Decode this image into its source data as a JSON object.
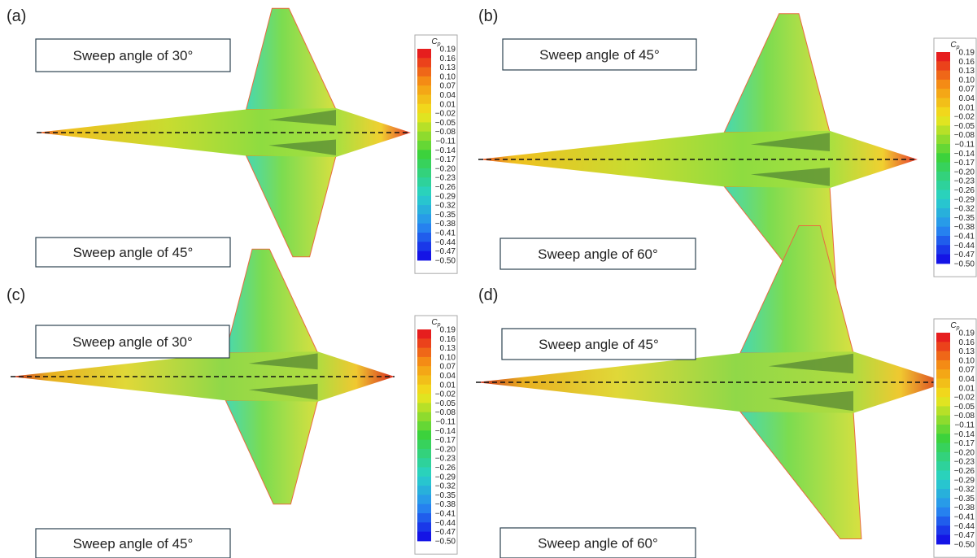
{
  "panels": [
    {
      "label": "(a)",
      "top_text": "Sweep angle of 30°",
      "bottom_text": "Sweep angle of 45°"
    },
    {
      "label": "(b)",
      "top_text": "Sweep angle of 45°",
      "bottom_text": "Sweep angle of 60°"
    },
    {
      "label": "(c)",
      "top_text": "Sweep angle of 30°",
      "bottom_text": "Sweep angle of 45°"
    },
    {
      "label": "(d)",
      "top_text": "Sweep angle of 45°",
      "bottom_text": "Sweep angle of 60°"
    }
  ],
  "colorbar": {
    "title": "C",
    "title_sub": "p",
    "ticks": [
      "0.19",
      "0.16",
      "0.13",
      "0.10",
      "0.07",
      "0.04",
      "0.01",
      "−0.02",
      "−0.05",
      "−0.08",
      "−0.11",
      "−0.14",
      "−0.17",
      "−0.20",
      "−0.23",
      "−0.26",
      "−0.29",
      "−0.32",
      "−0.35",
      "−0.38",
      "−0.41",
      "−0.44",
      "−0.47",
      "−0.50"
    ]
  }
}
